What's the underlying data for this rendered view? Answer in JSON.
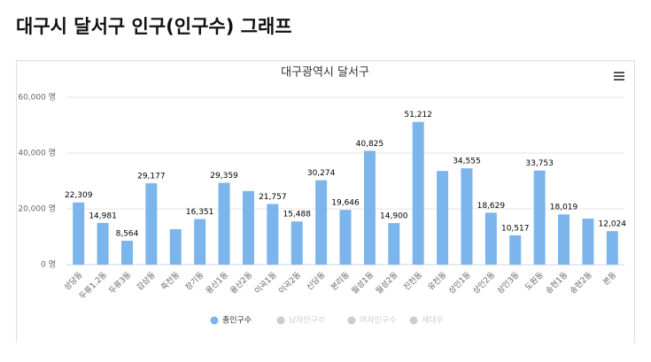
{
  "page_title": "대구시 달서구 인구(인구수) 그래프",
  "chart_data": {
    "type": "bar",
    "title": "대구광역시 달서구",
    "categories": [
      "성당동",
      "두류1.2동",
      "두류3동",
      "감삼동",
      "죽전동",
      "장기동",
      "용산1동",
      "용산2동",
      "이곡1동",
      "이곡2동",
      "신당동",
      "본리동",
      "월성1동",
      "월성2동",
      "진천동",
      "유천동",
      "상인1동",
      "상인2동",
      "상인3동",
      "도원동",
      "송현1동",
      "송현2동",
      "본동"
    ],
    "series": [
      {
        "name": "총인구수",
        "color": "#7cb5ec",
        "visible": true,
        "values": [
          22309,
          14981,
          8564,
          29177,
          12700,
          16351,
          29359,
          26400,
          21757,
          15488,
          30274,
          19646,
          40825,
          14900,
          51212,
          33600,
          34555,
          18629,
          10517,
          33753,
          18019,
          16500,
          12024
        ],
        "value_labels": [
          "22,309",
          "14,981",
          "8,564",
          "29,177",
          null,
          "16,351",
          "29,359",
          null,
          "21,757",
          "15,488",
          "30,274",
          "19,646",
          "40,825",
          "14,900",
          "51,212",
          null,
          "34,555",
          "18,629",
          "10,517",
          "33,753",
          "18,019",
          null,
          "12,024"
        ]
      },
      {
        "name": "남자인구수",
        "color": "#cccccc",
        "visible": false
      },
      {
        "name": "여자인구수",
        "color": "#cccccc",
        "visible": false
      },
      {
        "name": "세대수",
        "color": "#cccccc",
        "visible": false
      }
    ],
    "ylim": [
      0,
      60000
    ],
    "yticks": [
      {
        "value": 0,
        "label": "0 명"
      },
      {
        "value": 20000,
        "label": "20,000 명"
      },
      {
        "value": 40000,
        "label": "40,000 명"
      },
      {
        "value": 60000,
        "label": "60,000 명"
      }
    ],
    "grid": true,
    "legend": "bottom"
  }
}
